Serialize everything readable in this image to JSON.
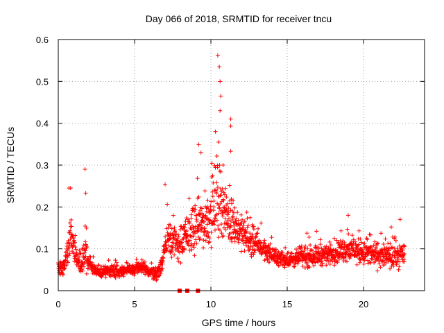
{
  "chart_data": {
    "type": "scatter",
    "title": "Day 066 of 2018, SRMTID for receiver tncu",
    "xlabel": "GPS time / hours",
    "ylabel": "SRMTID / TECUs",
    "xlim": [
      0,
      24
    ],
    "ylim": [
      0,
      0.6
    ],
    "xticks": [
      0,
      5,
      10,
      15,
      20
    ],
    "xtick_labels": [
      "0",
      "5",
      "10",
      "15",
      "20"
    ],
    "yticks": [
      0,
      0.1,
      0.2,
      0.3,
      0.4,
      0.5,
      0.6
    ],
    "ytick_labels": [
      "0",
      "0.1",
      "0.2",
      "0.3",
      "0.4",
      "0.5",
      "0.6"
    ],
    "grid": true,
    "marker": "plus",
    "series": [
      {
        "name": "SRMTID",
        "color": "#ff0000",
        "profile_hours": [
          0,
          0.3,
          0.6,
          0.8,
          1.0,
          1.3,
          1.6,
          1.8,
          2.0,
          2.3,
          2.6,
          3.0,
          3.5,
          4.0,
          4.5,
          5.0,
          5.5,
          6.0,
          6.5,
          6.9,
          7.2,
          7.5,
          7.8,
          8.2,
          8.6,
          9.0,
          9.4,
          9.8,
          10.2,
          10.5,
          10.8,
          11.1,
          11.5,
          12.0,
          12.5,
          13.0,
          13.5,
          14.0,
          14.5,
          15.0,
          15.5,
          16.0,
          17.0,
          18.0,
          19.0,
          20.0,
          21.0,
          22.0,
          22.7
        ],
        "profile_median_tecu": [
          0.06,
          0.05,
          0.09,
          0.14,
          0.1,
          0.07,
          0.06,
          0.09,
          0.07,
          0.05,
          0.045,
          0.045,
          0.05,
          0.045,
          0.05,
          0.05,
          0.055,
          0.045,
          0.04,
          0.08,
          0.14,
          0.12,
          0.11,
          0.12,
          0.14,
          0.15,
          0.16,
          0.17,
          0.2,
          0.23,
          0.2,
          0.17,
          0.16,
          0.14,
          0.12,
          0.11,
          0.1,
          0.085,
          0.075,
          0.075,
          0.075,
          0.08,
          0.085,
          0.09,
          0.1,
          0.09,
          0.085,
          0.08,
          0.09
        ],
        "profile_spread_tecu": [
          0.02,
          0.02,
          0.04,
          0.05,
          0.04,
          0.025,
          0.03,
          0.05,
          0.03,
          0.02,
          0.015,
          0.015,
          0.015,
          0.015,
          0.015,
          0.015,
          0.02,
          0.015,
          0.015,
          0.03,
          0.05,
          0.05,
          0.04,
          0.05,
          0.05,
          0.06,
          0.06,
          0.07,
          0.09,
          0.1,
          0.07,
          0.05,
          0.05,
          0.04,
          0.035,
          0.03,
          0.025,
          0.02,
          0.02,
          0.02,
          0.02,
          0.025,
          0.025,
          0.025,
          0.03,
          0.03,
          0.03,
          0.03,
          0.03
        ],
        "peaks": [
          {
            "x": 0.7,
            "y": 0.245
          },
          {
            "x": 1.75,
            "y": 0.29
          },
          {
            "x": 1.8,
            "y": 0.233
          },
          {
            "x": 7.0,
            "y": 0.254
          },
          {
            "x": 9.2,
            "y": 0.349
          },
          {
            "x": 9.35,
            "y": 0.33
          },
          {
            "x": 10.45,
            "y": 0.562
          },
          {
            "x": 10.55,
            "y": 0.535
          },
          {
            "x": 10.6,
            "y": 0.5
          },
          {
            "x": 10.65,
            "y": 0.465
          },
          {
            "x": 10.6,
            "y": 0.43
          },
          {
            "x": 10.3,
            "y": 0.38
          },
          {
            "x": 10.5,
            "y": 0.355
          },
          {
            "x": 11.3,
            "y": 0.41
          },
          {
            "x": 11.3,
            "y": 0.393
          },
          {
            "x": 11.3,
            "y": 0.333
          },
          {
            "x": 10.8,
            "y": 0.3
          },
          {
            "x": 19.0,
            "y": 0.18
          },
          {
            "x": 22.4,
            "y": 0.17
          }
        ],
        "zero_points": [
          {
            "x": 7.95,
            "y": 0
          },
          {
            "x": 8.45,
            "y": 0
          },
          {
            "x": 9.15,
            "y": 0
          }
        ]
      }
    ]
  }
}
